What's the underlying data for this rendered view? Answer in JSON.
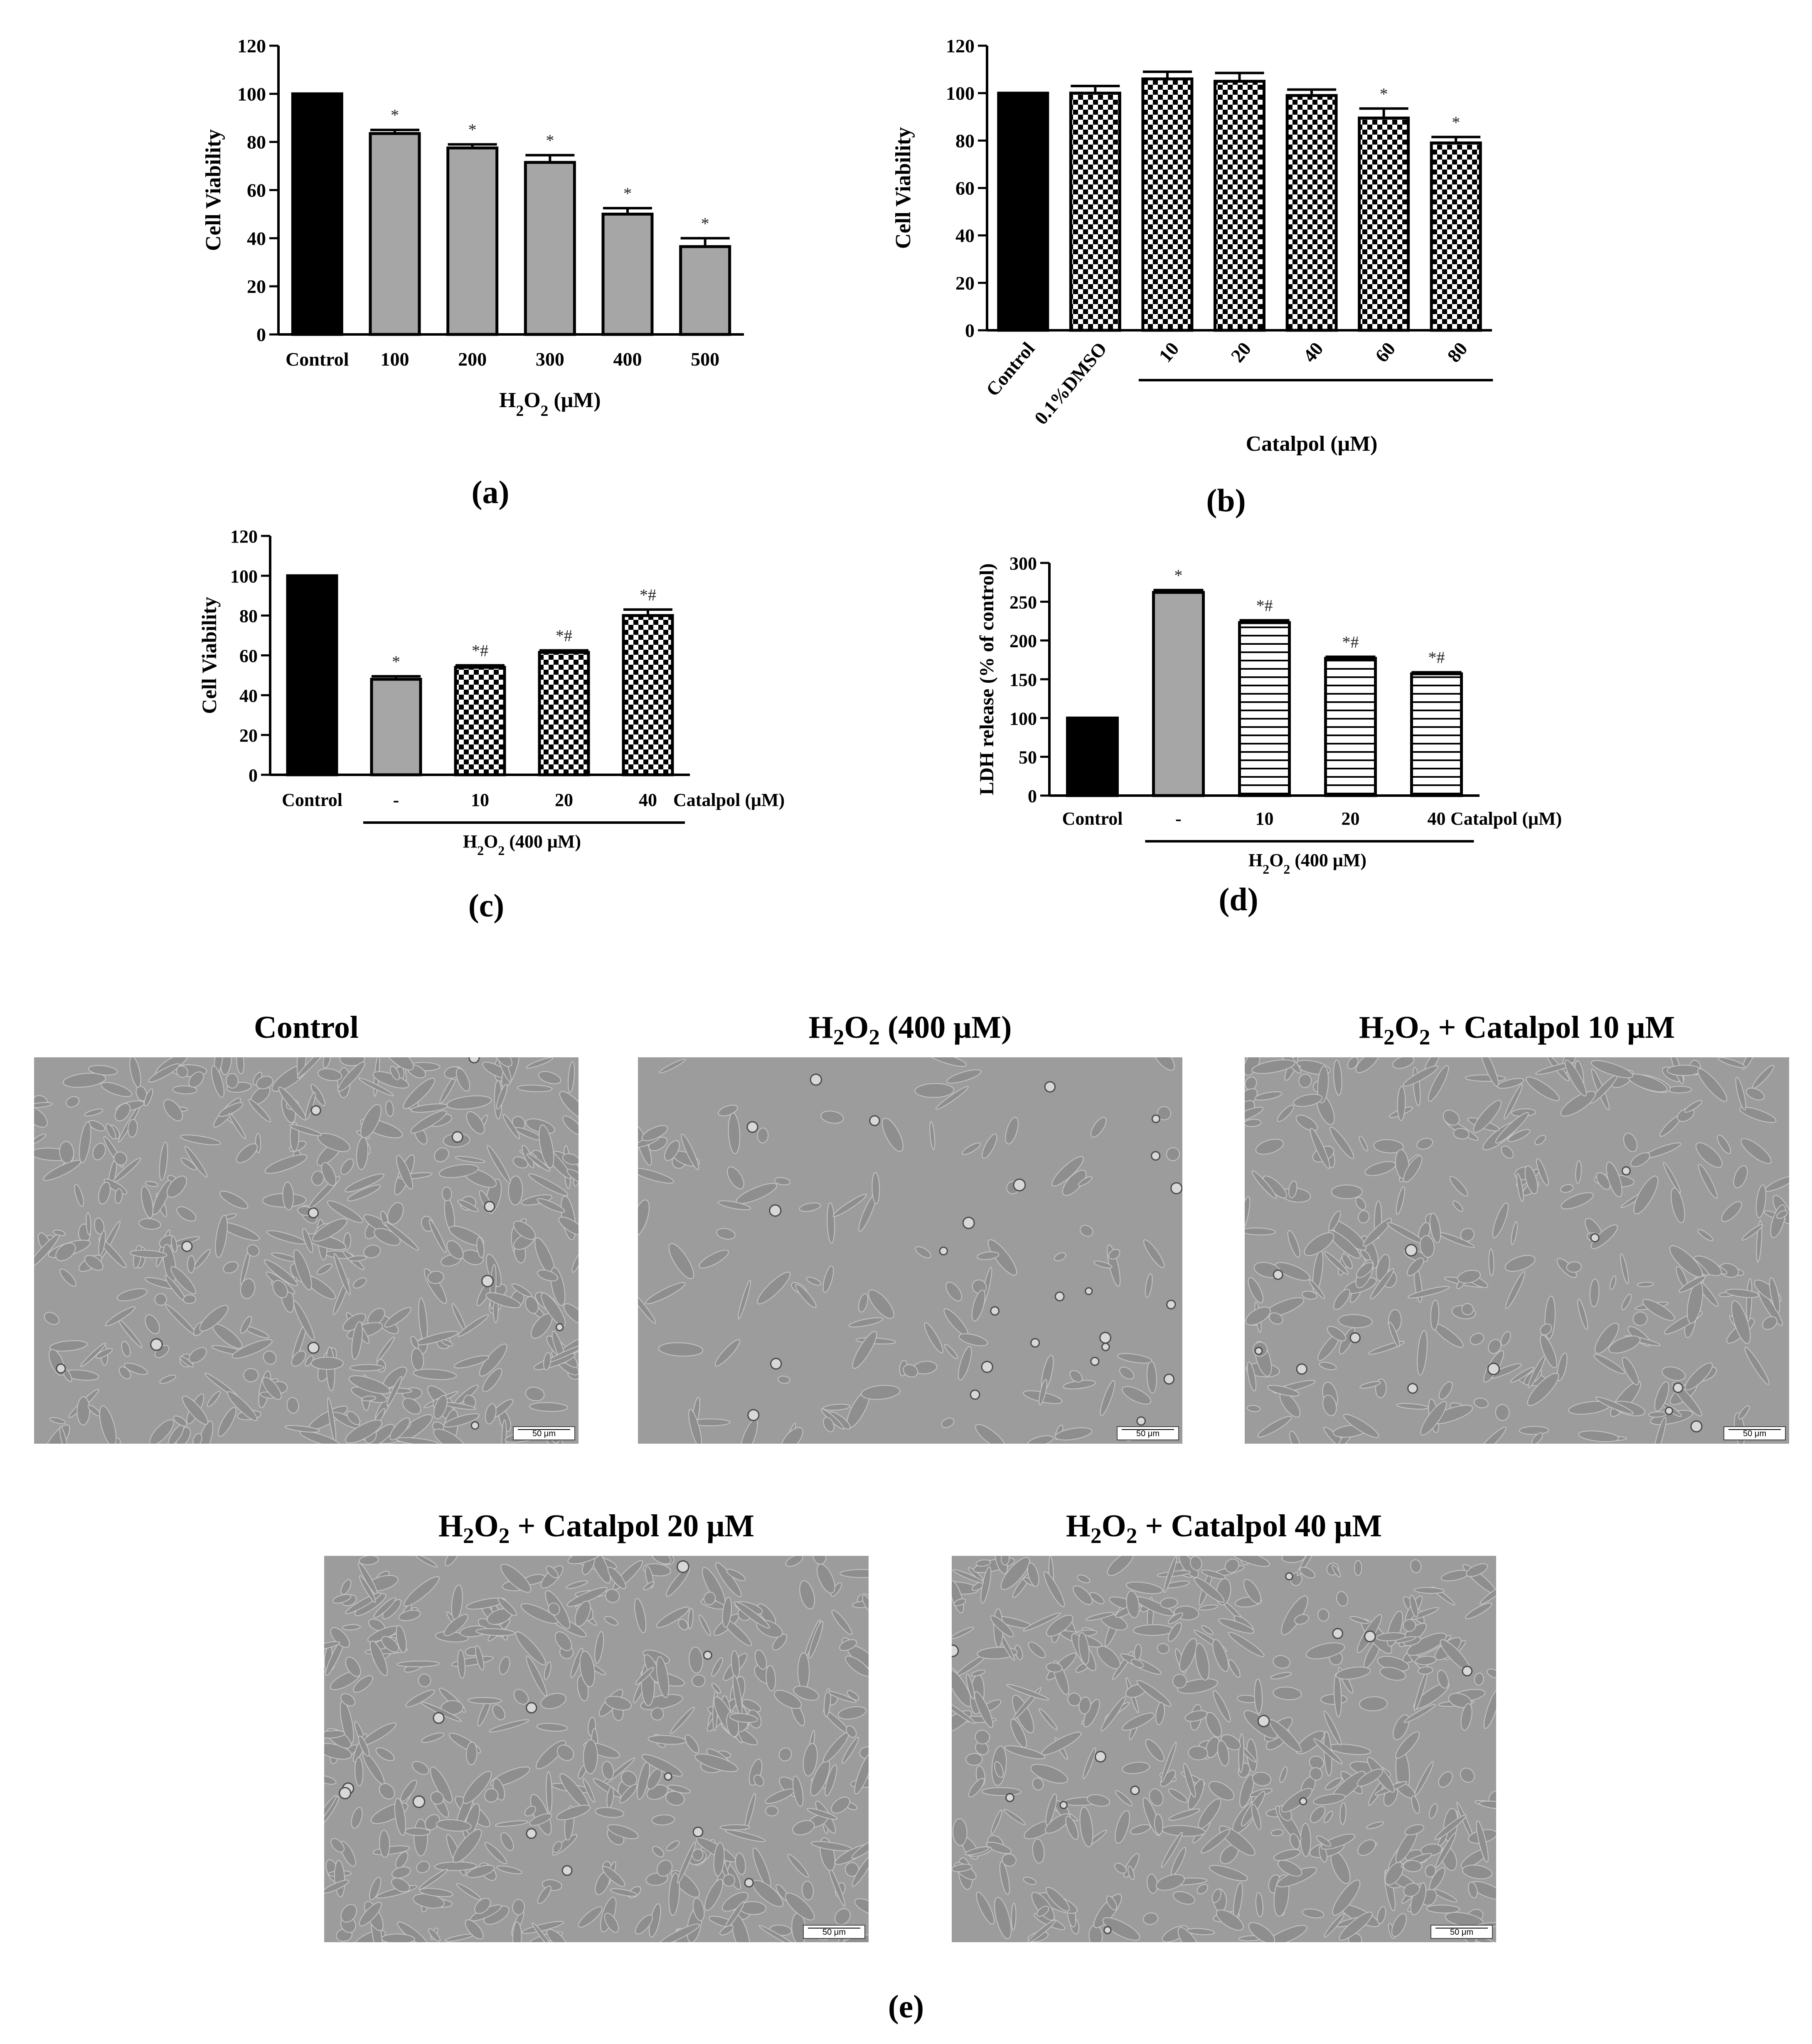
{
  "panel_labels": {
    "a": "(a)",
    "b": "(b)",
    "c": "(c)",
    "d": "(d)",
    "e": "(e)"
  },
  "colors": {
    "black_bar": "#000000",
    "gray_bar": "#a6a6a6",
    "pattern_white": "#ffffff"
  },
  "chart_data": [
    {
      "id": "a",
      "type": "bar",
      "ylabel": "Cell Viability",
      "xlabel": "H2O2 (μM)",
      "ylim": [
        0,
        120
      ],
      "yticks": [
        0,
        20,
        40,
        60,
        80,
        100,
        120
      ],
      "categories": [
        "Control",
        "100",
        "200",
        "300",
        "400",
        "500"
      ],
      "values": [
        100,
        83.5,
        77.5,
        71.5,
        50,
        36.5
      ],
      "errors": [
        0,
        1.5,
        1.5,
        3,
        2.5,
        3.5
      ],
      "annotations": [
        "",
        "*",
        "*",
        "*",
        "*",
        "*"
      ],
      "fills": [
        "black",
        "gray",
        "gray",
        "gray",
        "gray",
        "gray"
      ]
    },
    {
      "id": "b",
      "type": "bar",
      "ylabel": "Cell Viability",
      "xlabel": "Catalpol (μM)",
      "ylim": [
        0,
        120
      ],
      "yticks": [
        0,
        20,
        40,
        60,
        80,
        100,
        120
      ],
      "categories": [
        "Control",
        "0.1%DMSO",
        "10",
        "20",
        "40",
        "60",
        "80"
      ],
      "values": [
        100,
        100,
        106,
        105,
        99,
        89.5,
        79
      ],
      "errors": [
        0,
        3,
        3,
        3.5,
        2.5,
        4,
        2.5
      ],
      "annotations": [
        "",
        "",
        "",
        "",
        "",
        "*",
        "*"
      ],
      "fills": [
        "black",
        "checker",
        "checker",
        "checker",
        "checker",
        "checker",
        "checker"
      ]
    },
    {
      "id": "c",
      "type": "bar",
      "ylabel": "Cell Viability",
      "group_label": "H2O2 (400 μM)",
      "catalpol_label": "Catalpol (μM)",
      "ylim": [
        0,
        120
      ],
      "yticks": [
        0,
        20,
        40,
        60,
        80,
        100,
        120
      ],
      "categories": [
        "Control",
        "-",
        "10",
        "20",
        "40"
      ],
      "values": [
        100,
        48,
        54,
        61.5,
        80
      ],
      "errors": [
        0,
        1.5,
        1,
        1,
        3
      ],
      "annotations": [
        "",
        "*",
        "*#",
        "*#",
        "*#"
      ],
      "fills": [
        "black",
        "gray",
        "checker",
        "checker",
        "checker"
      ]
    },
    {
      "id": "d",
      "type": "bar",
      "ylabel": "LDH release (% of control)",
      "group_label": "H2O2 (400 μM)",
      "catalpol_label": "Catalpol (μM)",
      "ylim": [
        0,
        300
      ],
      "yticks": [
        0,
        50,
        100,
        150,
        200,
        250,
        300
      ],
      "categories": [
        "Control",
        "-",
        "10",
        "20",
        "40"
      ],
      "values": [
        100,
        262,
        223,
        177,
        157
      ],
      "errors": [
        0,
        3,
        3,
        2,
        2
      ],
      "annotations": [
        "",
        "*",
        "*#",
        "*#",
        "*#"
      ],
      "fills": [
        "black",
        "gray",
        "hlines",
        "hlines",
        "hlines"
      ]
    }
  ],
  "micrographs": {
    "titles": [
      "Control",
      "H2O2 (400 μM)",
      "H2O2 + Catalpol 10 μM",
      "H2O2 + Catalpol 20 μM",
      "H2O2 + Catalpol 40 μM"
    ],
    "scale": "50 μm"
  }
}
